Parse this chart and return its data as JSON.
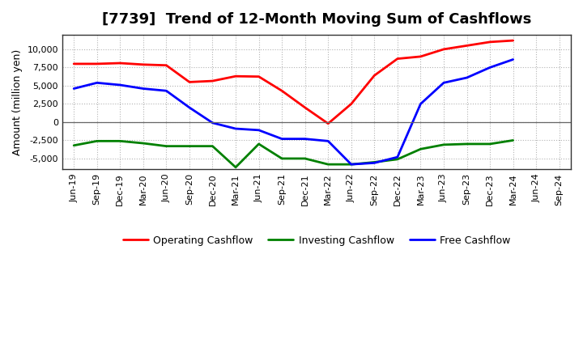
{
  "title": "[7739]  Trend of 12-Month Moving Sum of Cashflows",
  "ylabel": "Amount (million yen)",
  "x_labels": [
    "Jun-19",
    "Sep-19",
    "Dec-19",
    "Mar-20",
    "Jun-20",
    "Sep-20",
    "Dec-20",
    "Mar-21",
    "Jun-21",
    "Sep-21",
    "Dec-21",
    "Mar-22",
    "Jun-22",
    "Sep-22",
    "Dec-22",
    "Mar-23",
    "Jun-23",
    "Sep-23",
    "Dec-23",
    "Mar-24",
    "Jun-24",
    "Sep-24"
  ],
  "operating": [
    8000,
    8000,
    8100,
    7900,
    7800,
    5500,
    5650,
    6300,
    6250,
    4300,
    2000,
    -200,
    2500,
    6400,
    8700,
    9000,
    10000,
    10500,
    11000,
    11200,
    null,
    null
  ],
  "investing": [
    -3200,
    -2600,
    -2600,
    -2900,
    -3300,
    -3300,
    -3300,
    -6200,
    -3000,
    -5000,
    -5000,
    -5800,
    -5800,
    -5500,
    -5100,
    -3700,
    -3100,
    -3000,
    -3000,
    -2500,
    null,
    null
  ],
  "free": [
    4600,
    5400,
    5100,
    4600,
    4300,
    2000,
    -100,
    -900,
    -1100,
    -2300,
    -2300,
    -2600,
    -5800,
    -5600,
    -4800,
    2500,
    5400,
    6100,
    7500,
    8600,
    null,
    null
  ],
  "operating_color": "#ff0000",
  "investing_color": "#008000",
  "free_color": "#0000ff",
  "ylim": [
    -6500,
    12000
  ],
  "yticks": [
    -5000,
    -2500,
    0,
    2500,
    5000,
    7500,
    10000
  ],
  "background_color": "#ffffff",
  "plot_bg_color": "#ffffff",
  "grid_color": "#aaaaaa",
  "title_fontsize": 13,
  "label_fontsize": 9,
  "tick_fontsize": 8,
  "legend_fontsize": 9,
  "linewidth": 2.0
}
